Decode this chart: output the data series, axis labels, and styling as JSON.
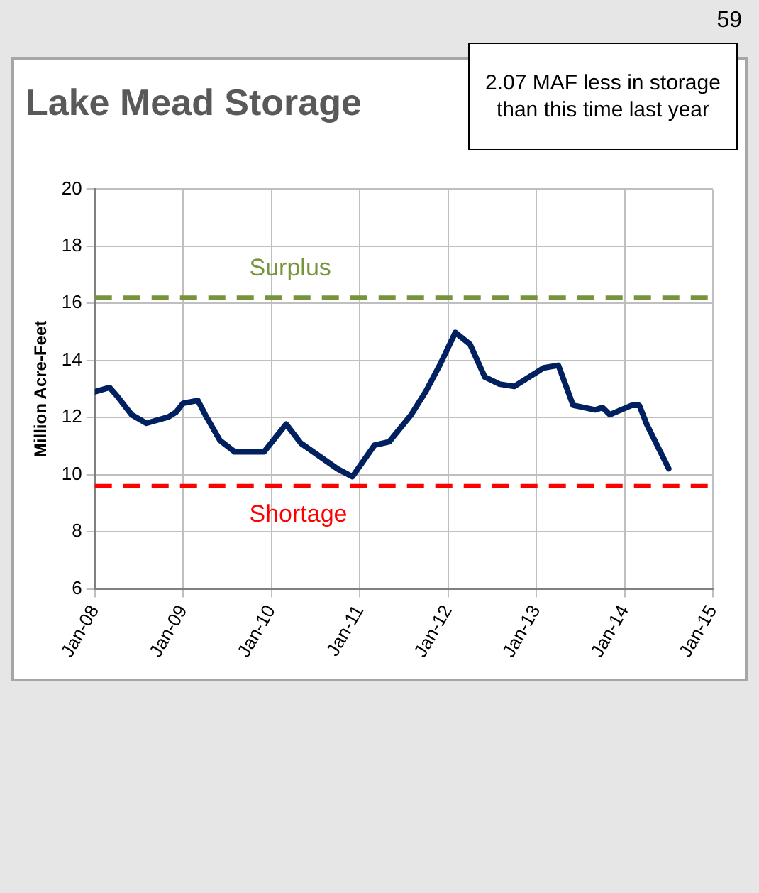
{
  "chart_data": {
    "type": "line",
    "title": "Lake Mead Storage",
    "ylabel": "Million Acre-Feet",
    "x": [
      "2008-01",
      "2008-03",
      "2008-04",
      "2008-06",
      "2008-08",
      "2008-11",
      "2008-12",
      "2009-01",
      "2009-03",
      "2009-04",
      "2009-06",
      "2009-08",
      "2009-12",
      "2010-03",
      "2010-05",
      "2010-09",
      "2010-10",
      "2010-12",
      "2011-03",
      "2011-05",
      "2011-08",
      "2011-10",
      "2011-12",
      "2012-02",
      "2012-04",
      "2012-06",
      "2012-08",
      "2012-10",
      "2013-02",
      "2013-04",
      "2013-06",
      "2013-09",
      "2013-10",
      "2013-11",
      "2014-02",
      "2014-03",
      "2014-04",
      "2014-07"
    ],
    "series": [
      {
        "color": "#002060",
        "values": [
          12.9,
          13.05,
          12.76,
          12.1,
          11.8,
          12.02,
          12.18,
          12.5,
          12.6,
          12.1,
          11.2,
          10.8,
          10.8,
          11.77,
          11.1,
          10.38,
          10.2,
          9.93,
          11.03,
          11.15,
          12.1,
          12.92,
          13.9,
          14.98,
          14.56,
          13.42,
          13.17,
          13.09,
          13.74,
          13.83,
          12.43,
          12.27,
          12.35,
          12.1,
          12.43,
          12.43,
          11.77,
          10.21
        ]
      }
    ],
    "xlim": [
      "2008-01",
      "2015-01"
    ],
    "xticks": [
      {
        "value": "2008-01",
        "label": "Jan-08"
      },
      {
        "value": "2009-01",
        "label": "Jan-09"
      },
      {
        "value": "2010-01",
        "label": "Jan-10"
      },
      {
        "value": "2011-01",
        "label": "Jan-11"
      },
      {
        "value": "2012-01",
        "label": "Jan-12"
      },
      {
        "value": "2013-01",
        "label": "Jan-13"
      },
      {
        "value": "2014-01",
        "label": "Jan-14"
      },
      {
        "value": "2015-01",
        "label": "Jan-15"
      }
    ],
    "ylim": [
      6,
      20
    ],
    "yticks": [
      6,
      8,
      10,
      12,
      14,
      16,
      18,
      20
    ],
    "ref_lines": [
      {
        "axis": "y",
        "value": 16.2,
        "label": "Surplus",
        "color": "#77933c",
        "line_style": "dashed"
      },
      {
        "axis": "y",
        "value": 9.6,
        "label": "Shortage",
        "color": "#ff0000",
        "line_style": "dashed"
      }
    ],
    "annotations": [
      "2.07 MAF less in storage than this time last year",
      "59"
    ],
    "grid": true,
    "legend": false,
    "marker": "none",
    "line_style": "solid"
  }
}
